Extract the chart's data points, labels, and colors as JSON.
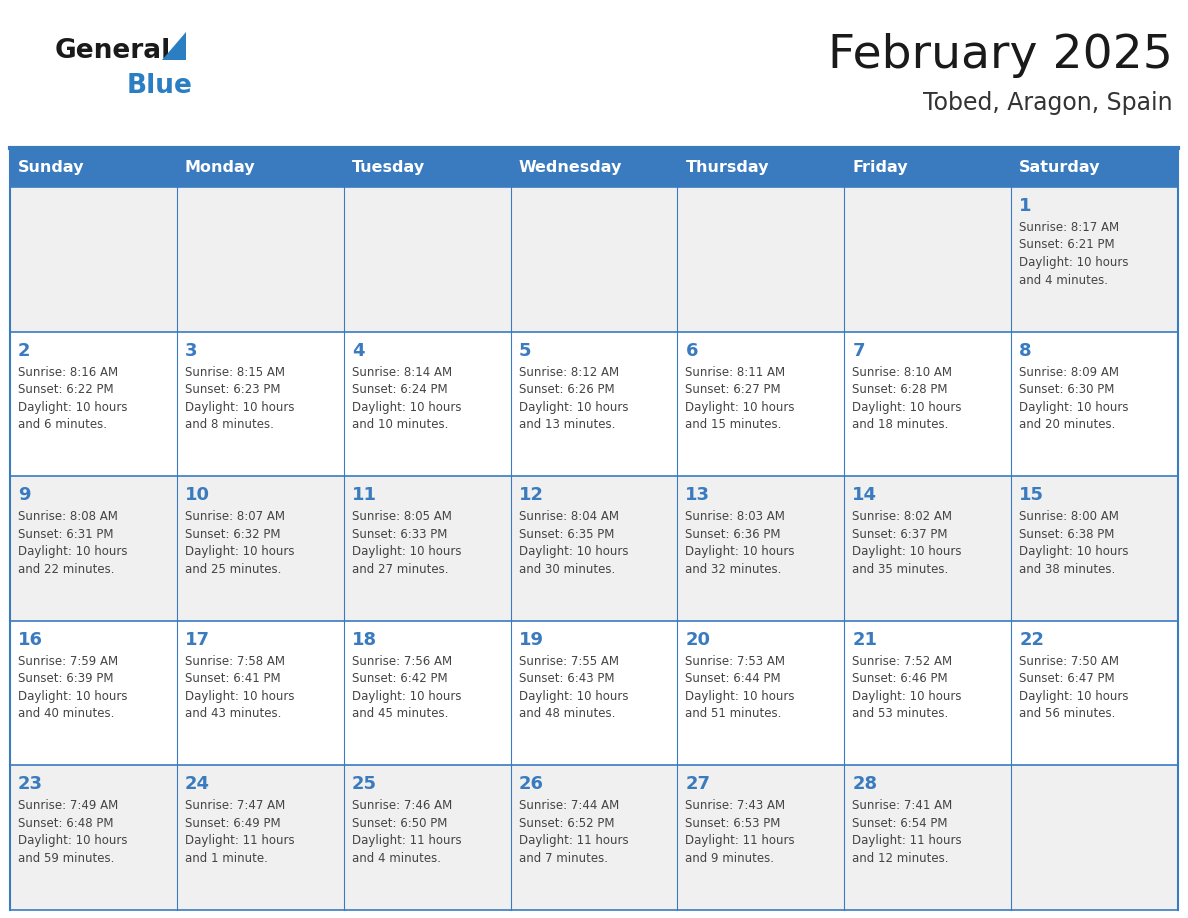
{
  "title": "February 2025",
  "subtitle": "Tobed, Aragon, Spain",
  "days_of_week": [
    "Sunday",
    "Monday",
    "Tuesday",
    "Wednesday",
    "Thursday",
    "Friday",
    "Saturday"
  ],
  "header_bg": "#3a7bbf",
  "header_text": "#ffffff",
  "cell_bg_odd": "#f0f0f0",
  "cell_bg_even": "#ffffff",
  "title_color": "#1a1a1a",
  "subtitle_color": "#333333",
  "day_number_color": "#3a7bbf",
  "cell_text_color": "#444444",
  "border_color": "#3a7bbf",
  "logo_general_color": "#1a1a1a",
  "logo_blue_color": "#2b7ec1",
  "calendar_data": [
    [
      {
        "day": null,
        "sunrise": null,
        "sunset": null,
        "daylight_line1": null,
        "daylight_line2": null
      },
      {
        "day": null,
        "sunrise": null,
        "sunset": null,
        "daylight_line1": null,
        "daylight_line2": null
      },
      {
        "day": null,
        "sunrise": null,
        "sunset": null,
        "daylight_line1": null,
        "daylight_line2": null
      },
      {
        "day": null,
        "sunrise": null,
        "sunset": null,
        "daylight_line1": null,
        "daylight_line2": null
      },
      {
        "day": null,
        "sunrise": null,
        "sunset": null,
        "daylight_line1": null,
        "daylight_line2": null
      },
      {
        "day": null,
        "sunrise": null,
        "sunset": null,
        "daylight_line1": null,
        "daylight_line2": null
      },
      {
        "day": 1,
        "sunrise": "8:17 AM",
        "sunset": "6:21 PM",
        "daylight_line1": "10 hours",
        "daylight_line2": "and 4 minutes."
      }
    ],
    [
      {
        "day": 2,
        "sunrise": "8:16 AM",
        "sunset": "6:22 PM",
        "daylight_line1": "10 hours",
        "daylight_line2": "and 6 minutes."
      },
      {
        "day": 3,
        "sunrise": "8:15 AM",
        "sunset": "6:23 PM",
        "daylight_line1": "10 hours",
        "daylight_line2": "and 8 minutes."
      },
      {
        "day": 4,
        "sunrise": "8:14 AM",
        "sunset": "6:24 PM",
        "daylight_line1": "10 hours",
        "daylight_line2": "and 10 minutes."
      },
      {
        "day": 5,
        "sunrise": "8:12 AM",
        "sunset": "6:26 PM",
        "daylight_line1": "10 hours",
        "daylight_line2": "and 13 minutes."
      },
      {
        "day": 6,
        "sunrise": "8:11 AM",
        "sunset": "6:27 PM",
        "daylight_line1": "10 hours",
        "daylight_line2": "and 15 minutes."
      },
      {
        "day": 7,
        "sunrise": "8:10 AM",
        "sunset": "6:28 PM",
        "daylight_line1": "10 hours",
        "daylight_line2": "and 18 minutes."
      },
      {
        "day": 8,
        "sunrise": "8:09 AM",
        "sunset": "6:30 PM",
        "daylight_line1": "10 hours",
        "daylight_line2": "and 20 minutes."
      }
    ],
    [
      {
        "day": 9,
        "sunrise": "8:08 AM",
        "sunset": "6:31 PM",
        "daylight_line1": "10 hours",
        "daylight_line2": "and 22 minutes."
      },
      {
        "day": 10,
        "sunrise": "8:07 AM",
        "sunset": "6:32 PM",
        "daylight_line1": "10 hours",
        "daylight_line2": "and 25 minutes."
      },
      {
        "day": 11,
        "sunrise": "8:05 AM",
        "sunset": "6:33 PM",
        "daylight_line1": "10 hours",
        "daylight_line2": "and 27 minutes."
      },
      {
        "day": 12,
        "sunrise": "8:04 AM",
        "sunset": "6:35 PM",
        "daylight_line1": "10 hours",
        "daylight_line2": "and 30 minutes."
      },
      {
        "day": 13,
        "sunrise": "8:03 AM",
        "sunset": "6:36 PM",
        "daylight_line1": "10 hours",
        "daylight_line2": "and 32 minutes."
      },
      {
        "day": 14,
        "sunrise": "8:02 AM",
        "sunset": "6:37 PM",
        "daylight_line1": "10 hours",
        "daylight_line2": "and 35 minutes."
      },
      {
        "day": 15,
        "sunrise": "8:00 AM",
        "sunset": "6:38 PM",
        "daylight_line1": "10 hours",
        "daylight_line2": "and 38 minutes."
      }
    ],
    [
      {
        "day": 16,
        "sunrise": "7:59 AM",
        "sunset": "6:39 PM",
        "daylight_line1": "10 hours",
        "daylight_line2": "and 40 minutes."
      },
      {
        "day": 17,
        "sunrise": "7:58 AM",
        "sunset": "6:41 PM",
        "daylight_line1": "10 hours",
        "daylight_line2": "and 43 minutes."
      },
      {
        "day": 18,
        "sunrise": "7:56 AM",
        "sunset": "6:42 PM",
        "daylight_line1": "10 hours",
        "daylight_line2": "and 45 minutes."
      },
      {
        "day": 19,
        "sunrise": "7:55 AM",
        "sunset": "6:43 PM",
        "daylight_line1": "10 hours",
        "daylight_line2": "and 48 minutes."
      },
      {
        "day": 20,
        "sunrise": "7:53 AM",
        "sunset": "6:44 PM",
        "daylight_line1": "10 hours",
        "daylight_line2": "and 51 minutes."
      },
      {
        "day": 21,
        "sunrise": "7:52 AM",
        "sunset": "6:46 PM",
        "daylight_line1": "10 hours",
        "daylight_line2": "and 53 minutes."
      },
      {
        "day": 22,
        "sunrise": "7:50 AM",
        "sunset": "6:47 PM",
        "daylight_line1": "10 hours",
        "daylight_line2": "and 56 minutes."
      }
    ],
    [
      {
        "day": 23,
        "sunrise": "7:49 AM",
        "sunset": "6:48 PM",
        "daylight_line1": "10 hours",
        "daylight_line2": "and 59 minutes."
      },
      {
        "day": 24,
        "sunrise": "7:47 AM",
        "sunset": "6:49 PM",
        "daylight_line1": "11 hours",
        "daylight_line2": "and 1 minute."
      },
      {
        "day": 25,
        "sunrise": "7:46 AM",
        "sunset": "6:50 PM",
        "daylight_line1": "11 hours",
        "daylight_line2": "and 4 minutes."
      },
      {
        "day": 26,
        "sunrise": "7:44 AM",
        "sunset": "6:52 PM",
        "daylight_line1": "11 hours",
        "daylight_line2": "and 7 minutes."
      },
      {
        "day": 27,
        "sunrise": "7:43 AM",
        "sunset": "6:53 PM",
        "daylight_line1": "11 hours",
        "daylight_line2": "and 9 minutes."
      },
      {
        "day": 28,
        "sunrise": "7:41 AM",
        "sunset": "6:54 PM",
        "daylight_line1": "11 hours",
        "daylight_line2": "and 12 minutes."
      },
      {
        "day": null,
        "sunrise": null,
        "sunset": null,
        "daylight_line1": null,
        "daylight_line2": null
      }
    ]
  ]
}
